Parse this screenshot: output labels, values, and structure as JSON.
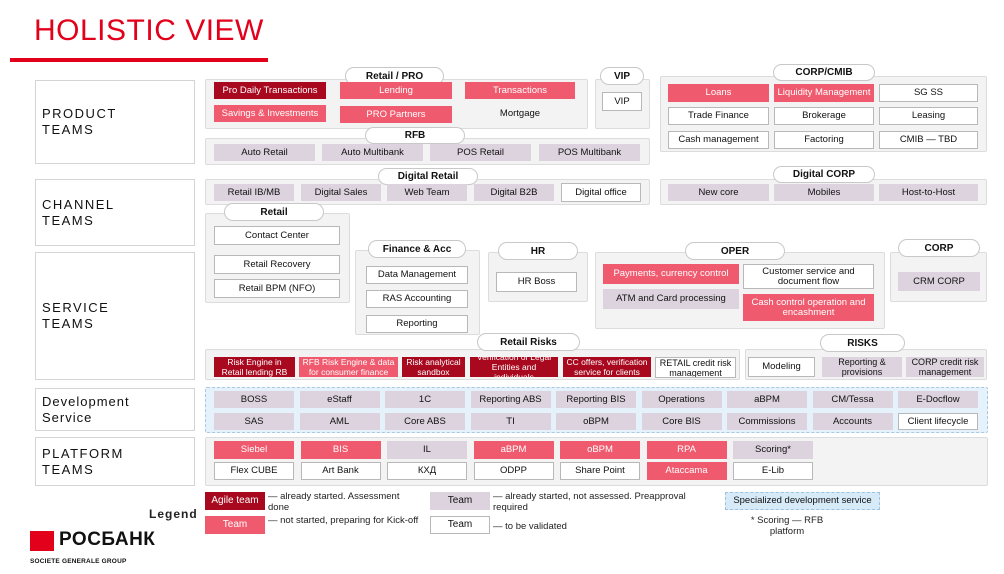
{
  "title": "HOLISTIC VIEW",
  "sections": {
    "product": [
      "PRODUCT",
      "TEAMS"
    ],
    "channel": [
      "CHANNEL",
      "TEAMS"
    ],
    "service": [
      "SERVICE",
      "TEAMS"
    ],
    "development": [
      "Development",
      "Service"
    ],
    "platform": [
      "PLATFORM",
      "TEAMS"
    ]
  },
  "groups": {
    "retail_pro": "Retail / PRO",
    "vip": "VIP",
    "corp_cmib": "CORP/CMIB",
    "rfb": "RFB",
    "digital_retail": "Digital Retail",
    "digital_corp": "Digital CORP",
    "retail": "Retail",
    "finance_acc": "Finance & Acc",
    "hr": "HR",
    "oper": "OPER",
    "corp": "CORP",
    "retail_risks": "Retail Risks",
    "risks": "RISKS"
  },
  "product": {
    "retail_pro": [
      "Pro Daily Transactions",
      "Lending",
      "Transactions",
      "Savings & Investments",
      "PRO Partners",
      "Mortgage"
    ],
    "vip": [
      "VIP"
    ],
    "corp": [
      "Loans",
      "Liquidity Management",
      "SG SS",
      "Trade Finance",
      "Brokerage",
      "Leasing",
      "Cash management",
      "Factoring",
      "CMIB — TBD"
    ],
    "rfb": [
      "Auto Retail",
      "Auto Multibank",
      "POS Retail",
      "POS Multibank"
    ]
  },
  "channel": {
    "digital_retail": [
      "Retail IB/MB",
      "Digital Sales",
      "Web Team",
      "Digital B2B",
      "Digital office"
    ],
    "digital_corp": [
      "New core",
      "Mobiles",
      "Host-to-Host"
    ]
  },
  "service": {
    "retail": [
      "Contact Center",
      "Retail Recovery",
      "Retail BPM (NFO)"
    ],
    "finance": [
      "Data Management",
      "RAS Accounting",
      "Reporting"
    ],
    "hr": [
      "HR Boss"
    ],
    "oper": [
      "Payments, currency control",
      "Customer service and document flow",
      "ATM and Card processing",
      "Cash control operation and encashment"
    ],
    "corp": [
      "CRM CORP"
    ],
    "retail_risks": [
      "Risk Engine in Retail lending RB",
      "RFB Risk Engine & data for consumer finance",
      "Risk analytical sandbox",
      "Verification of Legal Entities and individuals",
      "CC offers, verification service for clients",
      "RETAIL credit risk management"
    ],
    "risks": [
      "Modeling",
      "Reporting & provisions",
      "CORP credit risk management"
    ]
  },
  "development": {
    "row1": [
      "BOSS",
      "eStaff",
      "1C",
      "Reporting ABS",
      "Reporting BIS",
      "Operations",
      "aBPM",
      "CM/Tessa",
      "E-Docflow"
    ],
    "row2": [
      "SAS",
      "AML",
      "Core ABS",
      "TI",
      "oBPM",
      "Core BIS",
      "Commissions",
      "Accounts",
      "Client lifecycle"
    ]
  },
  "platform": {
    "row1": [
      "Siebel",
      "BIS",
      "IL",
      "aBPM",
      "oBPM",
      "RPA",
      "Scoring*"
    ],
    "row2": [
      "Flex CUBE",
      "Art Bank",
      "КХД",
      "ODPP",
      "Share Point",
      "Atacсama",
      "E-Lib"
    ]
  },
  "legend": {
    "label": "Legend",
    "agile_team": "Agile team",
    "agile_desc": "— already started. Assessment done",
    "team_pink": "Team",
    "pink_desc": "— not started, preparing for Kick-off",
    "team_lav": "Team",
    "lav_desc": "— already started, not assessed. Preapproval required",
    "team_white": "Team",
    "white_desc": "— to be validated",
    "specialized": "Specialized development service",
    "footnote": "* Scoring — RFB platform"
  },
  "logo": {
    "name": "РОСБАНК",
    "sub": "SOCIETE GENERALE GROUP"
  },
  "colors": {
    "brand_red": "#e2001a",
    "agile_dark_red": "#a8091f",
    "not_started_pink": "#f05a6e",
    "started_lavender": "#dcd3de",
    "dev_service_blue": "#e5f1fb"
  }
}
